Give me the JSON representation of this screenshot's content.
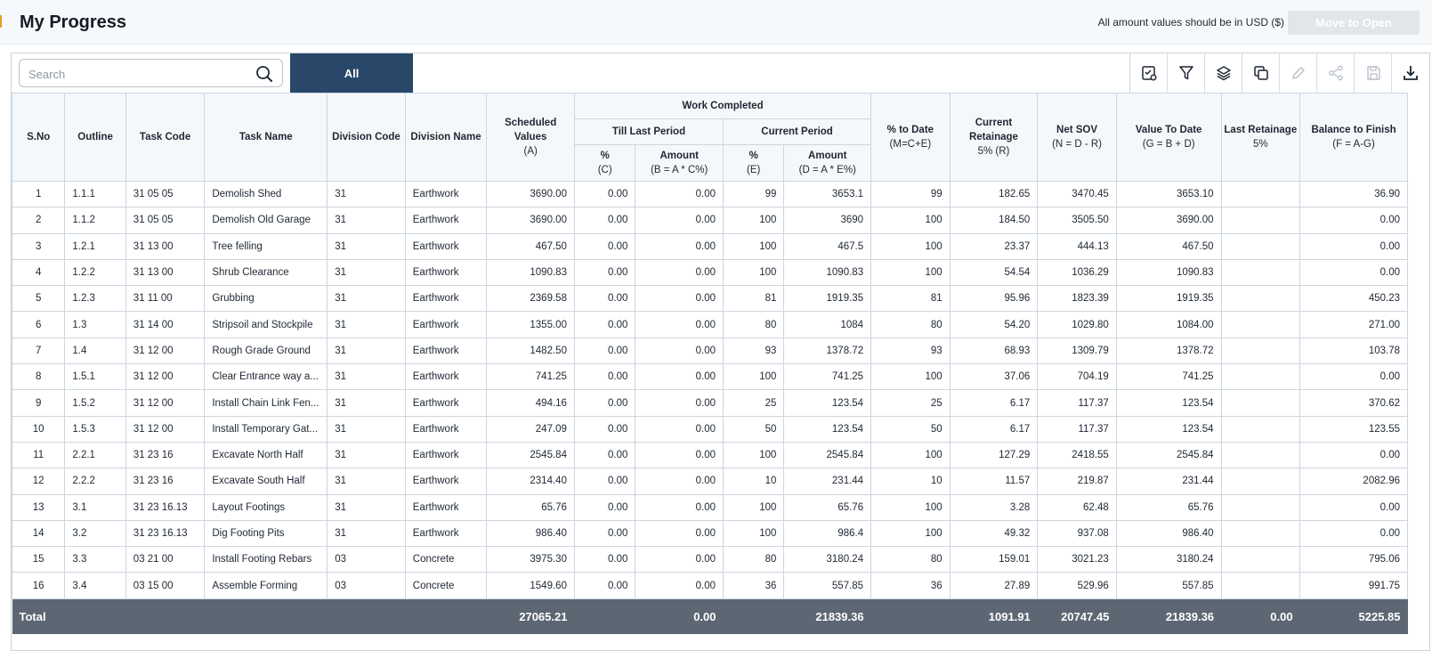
{
  "header": {
    "title": "My Progress",
    "usd_note": "All amount values should be in USD ($)",
    "move_button": "Move to Open"
  },
  "toolbar": {
    "search_placeholder": "Search",
    "tab_all": "All",
    "tools": [
      {
        "name": "view-settings-icon"
      },
      {
        "name": "filter-icon"
      },
      {
        "name": "layers-icon"
      },
      {
        "name": "copy-icon"
      },
      {
        "name": "edit-icon"
      },
      {
        "name": "share-icon"
      },
      {
        "name": "save-icon"
      },
      {
        "name": "download-icon"
      }
    ]
  },
  "table": {
    "headers": {
      "sno": "S.No",
      "outline": "Outline",
      "task_code": "Task Code",
      "task_name": "Task Name",
      "division_code": "Division Code",
      "division_name": "Division Name",
      "scheduled_values": "Scheduled Values",
      "scheduled_values_sub": "(A)",
      "work_completed": "Work Completed",
      "till_last_period": "Till Last Period",
      "current_period": "Current Period",
      "tlp_pct": "%",
      "tlp_pct_sub": "(C)",
      "tlp_amount": "Amount",
      "tlp_amount_sub": "(B = A * C%)",
      "cp_pct": "%",
      "cp_pct_sub": "(E)",
      "cp_amount": "Amount",
      "cp_amount_sub": "(D = A * E%)",
      "pct_to_date": "% to Date",
      "pct_to_date_sub": "(M=C+E)",
      "current_retainage": "Current Retainage",
      "current_retainage_sub": "5% (R)",
      "net_sov": "Net SOV",
      "net_sov_sub": "(N = D - R)",
      "value_to_date": "Value To Date",
      "value_to_date_sub": "(G = B + D)",
      "last_retainage": "Last Retainage",
      "last_retainage_sub": "5%",
      "balance_to_finish": "Balance to Finish",
      "balance_to_finish_sub": "(F = A-G)"
    },
    "rows": [
      [
        "1",
        "1.1.1",
        "31 05 05",
        "Demolish Shed",
        "31",
        "Earthwork",
        "3690.00",
        "0.00",
        "0.00",
        "99",
        "3653.1",
        "99",
        "182.65",
        "3470.45",
        "3653.10",
        "",
        "36.90"
      ],
      [
        "2",
        "1.1.2",
        "31 05 05",
        "Demolish Old Garage",
        "31",
        "Earthwork",
        "3690.00",
        "0.00",
        "0.00",
        "100",
        "3690",
        "100",
        "184.50",
        "3505.50",
        "3690.00",
        "",
        "0.00"
      ],
      [
        "3",
        "1.2.1",
        "31 13 00",
        "Tree felling",
        "31",
        "Earthwork",
        "467.50",
        "0.00",
        "0.00",
        "100",
        "467.5",
        "100",
        "23.37",
        "444.13",
        "467.50",
        "",
        "0.00"
      ],
      [
        "4",
        "1.2.2",
        "31 13 00",
        "Shrub Clearance",
        "31",
        "Earthwork",
        "1090.83",
        "0.00",
        "0.00",
        "100",
        "1090.83",
        "100",
        "54.54",
        "1036.29",
        "1090.83",
        "",
        "0.00"
      ],
      [
        "5",
        "1.2.3",
        "31 11 00",
        "Grubbing",
        "31",
        "Earthwork",
        "2369.58",
        "0.00",
        "0.00",
        "81",
        "1919.35",
        "81",
        "95.96",
        "1823.39",
        "1919.35",
        "",
        "450.23"
      ],
      [
        "6",
        "1.3",
        "31 14 00",
        "Stripsoil and Stockpile",
        "31",
        "Earthwork",
        "1355.00",
        "0.00",
        "0.00",
        "80",
        "1084",
        "80",
        "54.20",
        "1029.80",
        "1084.00",
        "",
        "271.00"
      ],
      [
        "7",
        "1.4",
        "31 12 00",
        "Rough Grade Ground",
        "31",
        "Earthwork",
        "1482.50",
        "0.00",
        "0.00",
        "93",
        "1378.72",
        "93",
        "68.93",
        "1309.79",
        "1378.72",
        "",
        "103.78"
      ],
      [
        "8",
        "1.5.1",
        "31 12 00",
        "Clear Entrance way a...",
        "31",
        "Earthwork",
        "741.25",
        "0.00",
        "0.00",
        "100",
        "741.25",
        "100",
        "37.06",
        "704.19",
        "741.25",
        "",
        "0.00"
      ],
      [
        "9",
        "1.5.2",
        "31 12 00",
        "Install Chain Link Fen...",
        "31",
        "Earthwork",
        "494.16",
        "0.00",
        "0.00",
        "25",
        "123.54",
        "25",
        "6.17",
        "117.37",
        "123.54",
        "",
        "370.62"
      ],
      [
        "10",
        "1.5.3",
        "31 12 00",
        "Install Temporary Gat...",
        "31",
        "Earthwork",
        "247.09",
        "0.00",
        "0.00",
        "50",
        "123.54",
        "50",
        "6.17",
        "117.37",
        "123.54",
        "",
        "123.55"
      ],
      [
        "11",
        "2.2.1",
        "31 23 16",
        "Excavate North Half",
        "31",
        "Earthwork",
        "2545.84",
        "0.00",
        "0.00",
        "100",
        "2545.84",
        "100",
        "127.29",
        "2418.55",
        "2545.84",
        "",
        "0.00"
      ],
      [
        "12",
        "2.2.2",
        "31 23 16",
        "Excavate South Half",
        "31",
        "Earthwork",
        "2314.40",
        "0.00",
        "0.00",
        "10",
        "231.44",
        "10",
        "11.57",
        "219.87",
        "231.44",
        "",
        "2082.96"
      ],
      [
        "13",
        "3.1",
        "31 23 16.13",
        "Layout Footings",
        "31",
        "Earthwork",
        "65.76",
        "0.00",
        "0.00",
        "100",
        "65.76",
        "100",
        "3.28",
        "62.48",
        "65.76",
        "",
        "0.00"
      ],
      [
        "14",
        "3.2",
        "31 23 16.13",
        "Dig Footing Pits",
        "31",
        "Earthwork",
        "986.40",
        "0.00",
        "0.00",
        "100",
        "986.4",
        "100",
        "49.32",
        "937.08",
        "986.40",
        "",
        "0.00"
      ],
      [
        "15",
        "3.3",
        "03 21 00",
        "Install Footing Rebars",
        "03",
        "Concrete",
        "3975.30",
        "0.00",
        "0.00",
        "80",
        "3180.24",
        "80",
        "159.01",
        "3021.23",
        "3180.24",
        "",
        "795.06"
      ],
      [
        "16",
        "3.4",
        "03 15 00",
        "Assemble Forming",
        "03",
        "Concrete",
        "1549.60",
        "0.00",
        "0.00",
        "36",
        "557.85",
        "36",
        "27.89",
        "529.96",
        "557.85",
        "",
        "991.75"
      ]
    ],
    "total": {
      "label": "Total",
      "scheduled_values": "27065.21",
      "tlp_amount": "0.00",
      "cp_amount": "21839.36",
      "current_retainage": "1091.91",
      "net_sov": "20747.45",
      "value_to_date": "21839.36",
      "last_retainage": "0.00",
      "balance_to_finish": "5225.85"
    }
  }
}
